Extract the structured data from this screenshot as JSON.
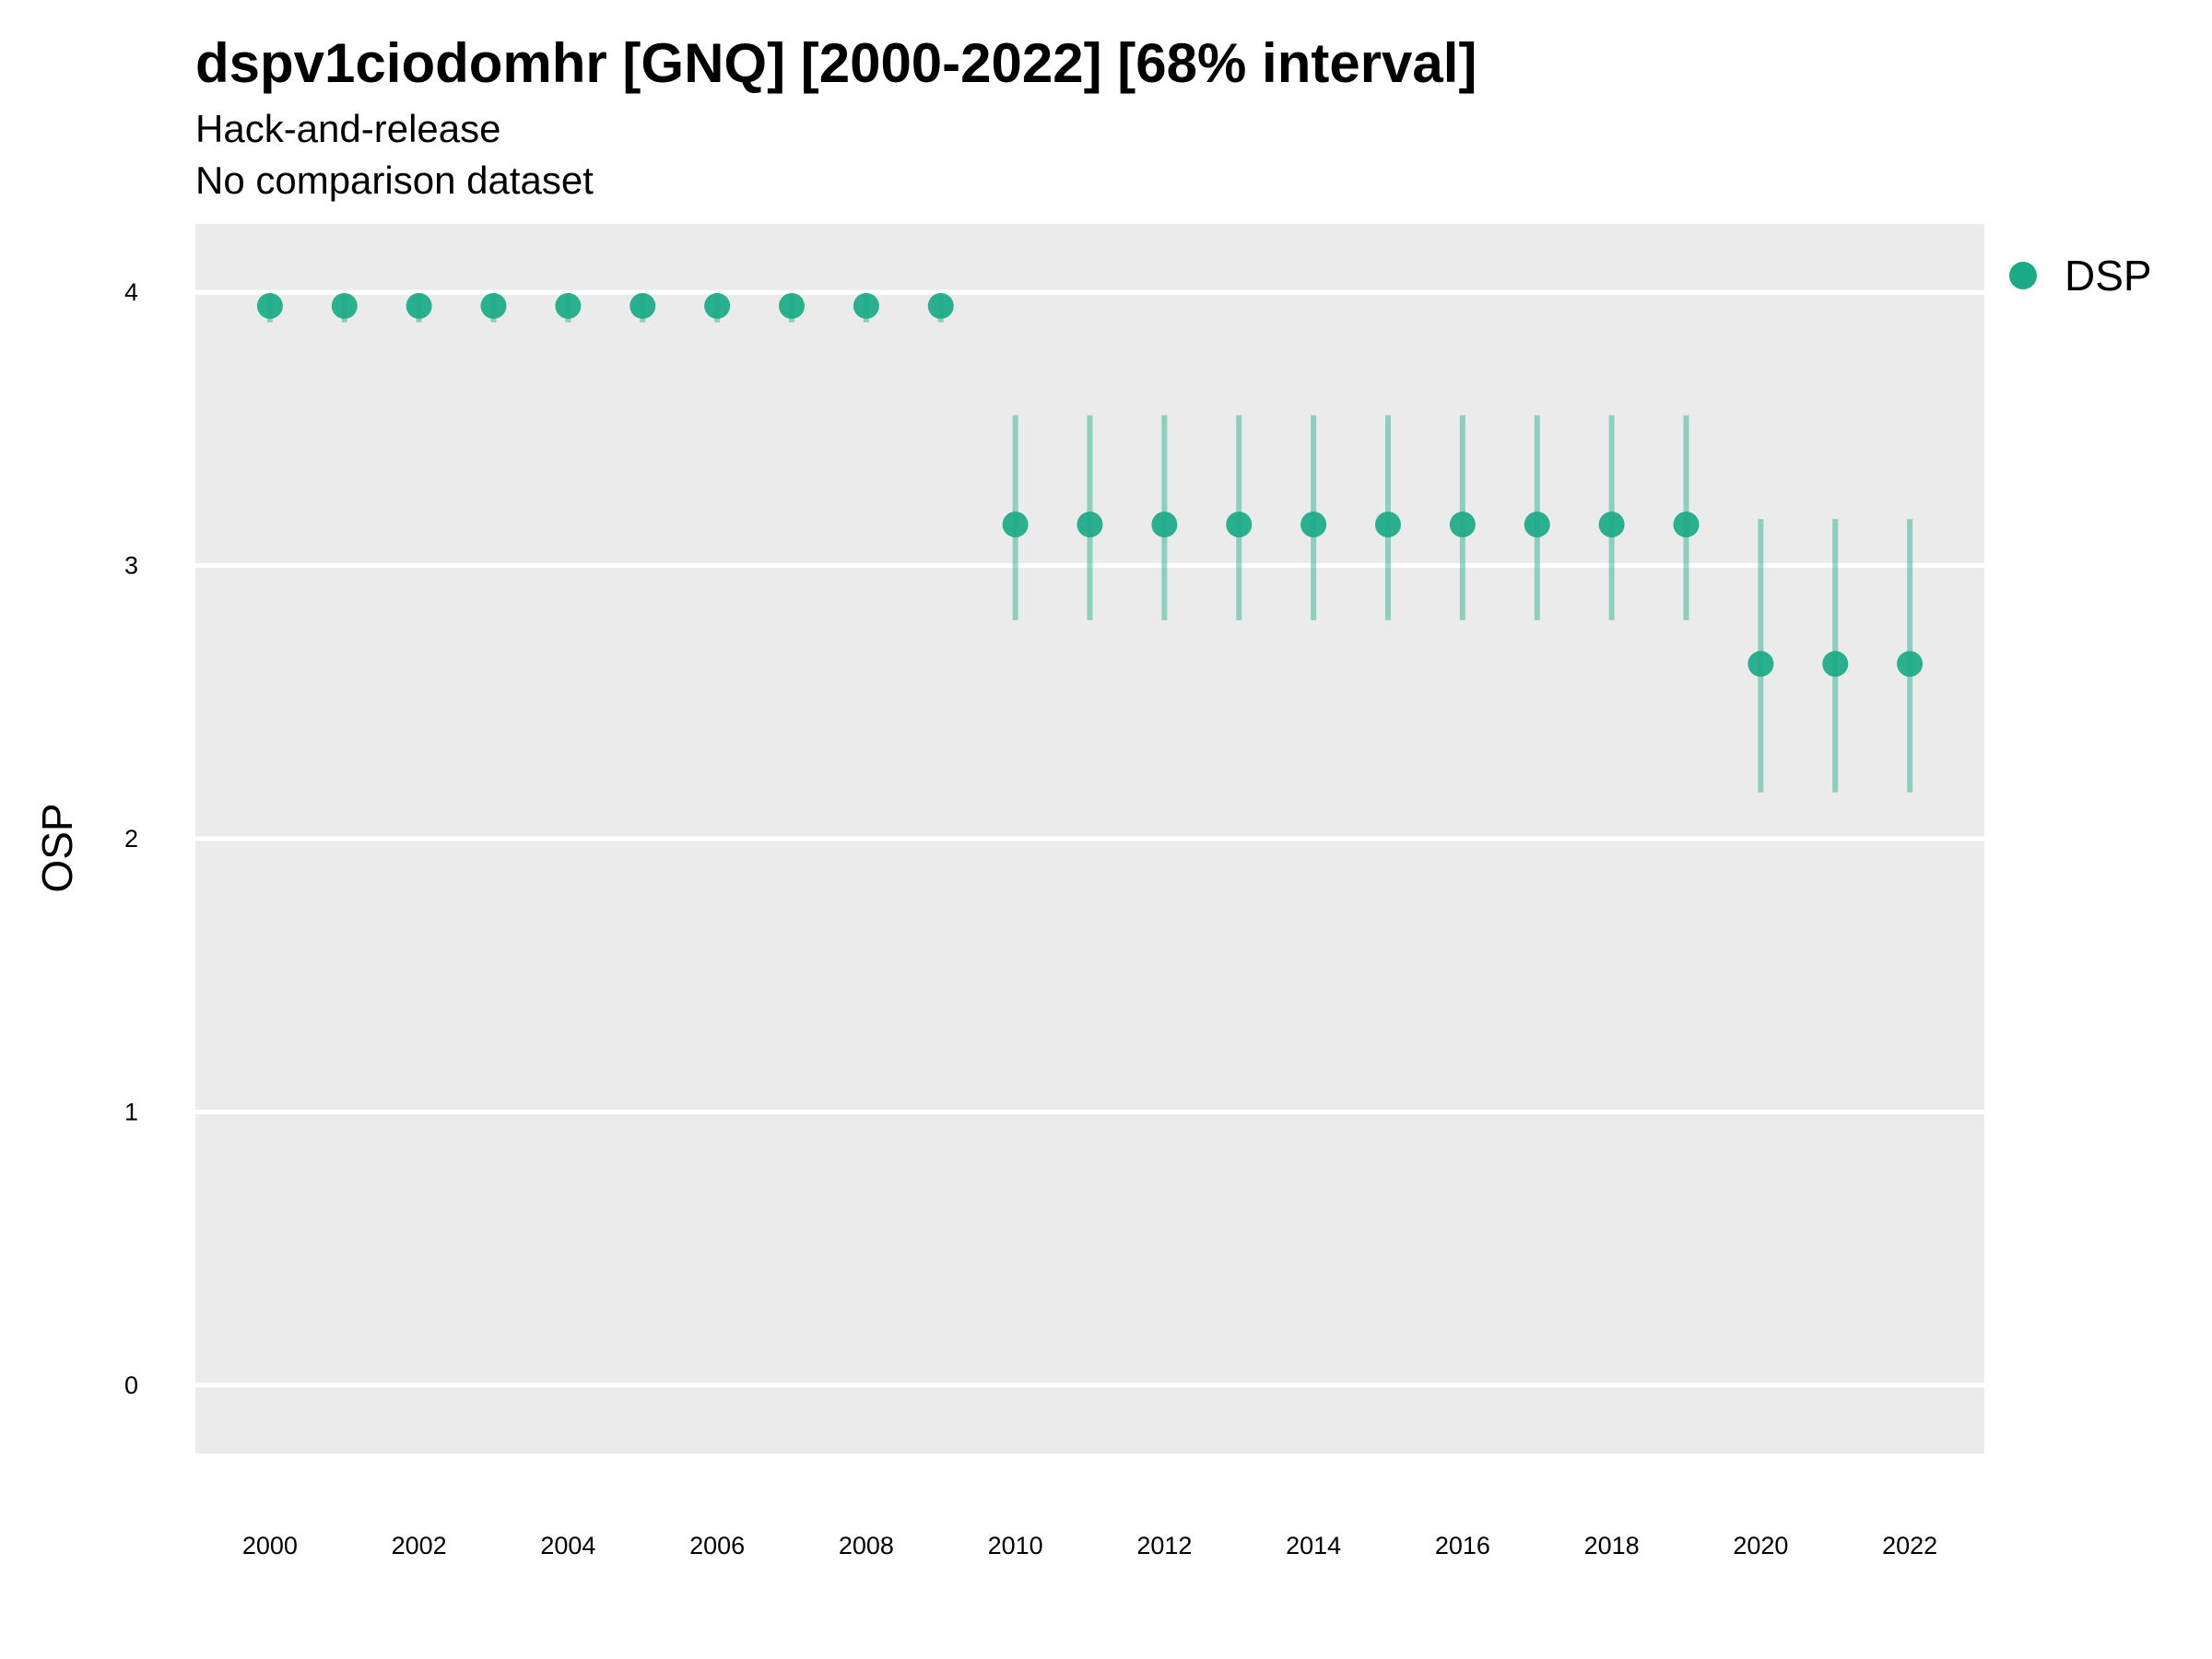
{
  "chart_data": {
    "type": "scatter",
    "title": "dspv1ciodomhr [GNQ] [2000-2022] [68% interval]",
    "subtitle": "Hack-and-release",
    "caption": "No comparison dataset",
    "xlabel": "",
    "ylabel": "OSP",
    "xlim": [
      1999,
      2023
    ],
    "ylim": [
      -0.25,
      4.25
    ],
    "x_ticks": [
      "2000",
      "2002",
      "2004",
      "2006",
      "2008",
      "2010",
      "2012",
      "2014",
      "2016",
      "2018",
      "2020",
      "2022"
    ],
    "y_ticks": [
      "0",
      "1",
      "2",
      "3",
      "4"
    ],
    "grid": true,
    "legend": {
      "position": "right",
      "entries": [
        "DSP"
      ]
    },
    "series": [
      {
        "name": "DSP",
        "color": "#1aaa87",
        "x": [
          2000,
          2001,
          2002,
          2003,
          2004,
          2005,
          2006,
          2007,
          2008,
          2009,
          2010,
          2011,
          2012,
          2013,
          2014,
          2015,
          2016,
          2017,
          2018,
          2019,
          2020,
          2021,
          2022
        ],
        "y": [
          3.95,
          3.95,
          3.95,
          3.95,
          3.95,
          3.95,
          3.95,
          3.95,
          3.95,
          3.95,
          3.15,
          3.15,
          3.15,
          3.15,
          3.15,
          3.15,
          3.15,
          3.15,
          3.15,
          3.15,
          2.64,
          2.64,
          2.64
        ],
        "lower": [
          3.89,
          3.89,
          3.89,
          3.89,
          3.89,
          3.89,
          3.89,
          3.89,
          3.89,
          3.89,
          2.8,
          2.8,
          2.8,
          2.8,
          2.8,
          2.8,
          2.8,
          2.8,
          2.8,
          2.8,
          2.17,
          2.17,
          2.17
        ],
        "upper": [
          3.99,
          3.99,
          3.99,
          3.99,
          3.99,
          3.99,
          3.99,
          3.99,
          3.99,
          3.99,
          3.55,
          3.55,
          3.55,
          3.55,
          3.55,
          3.55,
          3.55,
          3.55,
          3.55,
          3.55,
          3.17,
          3.17,
          3.17
        ]
      }
    ]
  }
}
